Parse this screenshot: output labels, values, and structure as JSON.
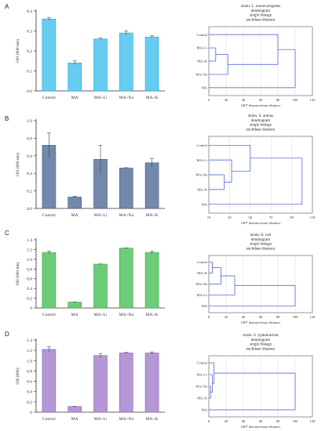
{
  "panels": [
    {
      "letter": "A",
      "bar": {
        "type": "bar",
        "categories": [
          "Control",
          "MA",
          "MA+Li",
          "MA+Na",
          "MA+K"
        ],
        "values": [
          0.36,
          0.14,
          0.26,
          0.29,
          0.27
        ],
        "errors": [
          0.008,
          0.01,
          0.004,
          0.01,
          0.006
        ],
        "ylabel": "OD (600 nm)",
        "ylim": [
          0,
          0.4
        ],
        "yticks": [
          "0.0",
          "0.1",
          "0.2",
          "0.3",
          "0.4"
        ],
        "color": "#66cdf0",
        "stroke": "#2aa7d6"
      },
      "dendro": {
        "title_lines": [
          "strain: L. monocytogenes",
          "dendrogram",
          "single linkage",
          "euclidean distance"
        ],
        "leaves": [
          "Control",
          "MA+Li",
          "MA+K",
          "MA+Na",
          "MA"
        ],
        "xlim": [
          0,
          120
        ],
        "xticks": [
          "0",
          "20",
          "40",
          "60",
          "80",
          "100",
          "120"
        ],
        "xlabel": "100* distance/max distance",
        "merges": [
          {
            "a": 1,
            "b": 2,
            "h": 8
          },
          {
            "a": "m0",
            "b": 3,
            "h": 22
          },
          {
            "a": 0,
            "b": "m1",
            "h": 80
          },
          {
            "a": "m2",
            "b": 4,
            "h": 100
          }
        ]
      }
    },
    {
      "letter": "B",
      "bar": {
        "type": "bar",
        "categories": [
          "Control",
          "MA",
          "MA+Li",
          "MA+Na",
          "MA+K"
        ],
        "values": [
          0.72,
          0.13,
          0.56,
          0.46,
          0.52
        ],
        "errors": [
          0.14,
          0.01,
          0.16,
          0.005,
          0.05
        ],
        "ylabel": "OD (600 nm)",
        "ylim": [
          0,
          1.0
        ],
        "yticks": [
          "0.0",
          "0.2",
          "0.4",
          "0.6",
          "0.8",
          "1.0"
        ],
        "color": "#7388ab",
        "stroke": "#4a5f86"
      },
      "dendro": {
        "title_lines": [
          "strain: S. aureus",
          "dendrogram",
          "single linkage",
          "euclidean distance"
        ],
        "leaves": [
          "Control",
          "MA+Li",
          "MA+Na",
          "MA+K",
          "MA"
        ],
        "xlim": [
          10,
          110
        ],
        "xticks": [
          "10",
          "30",
          "50",
          "70",
          "90",
          "110"
        ],
        "xlabel": "100* distance/max distance",
        "merges": [
          {
            "a": 2,
            "b": 3,
            "h": 25
          },
          {
            "a": 1,
            "b": "m0",
            "h": 32
          },
          {
            "a": 0,
            "b": "m1",
            "h": 50
          },
          {
            "a": "m2",
            "b": 4,
            "h": 100
          }
        ]
      }
    },
    {
      "letter": "C",
      "bar": {
        "type": "bar",
        "categories": [
          "Control",
          "MA",
          "MA+Li",
          "MA+Na",
          "MA+K"
        ],
        "values": [
          1.14,
          0.12,
          0.9,
          1.23,
          1.14
        ],
        "errors": [
          0.03,
          0.005,
          0.005,
          0.005,
          0.03
        ],
        "ylabel": "OD (600 nm)",
        "ylim": [
          0,
          1.4
        ],
        "yticks": [
          "0",
          "0.2",
          "0.4",
          "0.6",
          "0.8",
          "1.0",
          "1.2",
          "1.4"
        ],
        "color": "#6dcc78",
        "stroke": "#3ea34c"
      },
      "dendro": {
        "title_lines": [
          "strain: E. coli",
          "dendrogram",
          "single linkage",
          "euclidean distance"
        ],
        "leaves": [
          "Control",
          "MA+K",
          "MA+Na",
          "MA+Li",
          "MA"
        ],
        "xlim": [
          0,
          120
        ],
        "xticks": [
          "0",
          "20",
          "40",
          "60",
          "80",
          "100",
          "120"
        ],
        "xlabel": "100* distance/max distance",
        "merges": [
          {
            "a": 0,
            "b": 1,
            "h": 4
          },
          {
            "a": "m0",
            "b": 2,
            "h": 14
          },
          {
            "a": "m1",
            "b": 3,
            "h": 30
          },
          {
            "a": "m2",
            "b": 4,
            "h": 100
          }
        ]
      }
    },
    {
      "letter": "D",
      "bar": {
        "type": "bar",
        "categories": [
          "Control",
          "MA",
          "MA+Li",
          "MA+Na",
          "MA+K"
        ],
        "values": [
          1.22,
          0.11,
          1.1,
          1.15,
          1.15
        ],
        "errors": [
          0.05,
          0.005,
          0.04,
          0.01,
          0.02
        ],
        "ylabel": "OD (600)",
        "ylim": [
          0,
          1.4
        ],
        "yticks": [
          "0",
          "0.2",
          "0.4",
          "0.6",
          "0.8",
          "1.0",
          "1.2",
          "1.4"
        ],
        "color": "#b497d4",
        "stroke": "#8a67b2"
      },
      "dendro": {
        "title_lines": [
          "strain: S. typhimurium",
          "dendrogram",
          "single linkage",
          "euclidean distance"
        ],
        "leaves": [
          "Control",
          "MA+Li",
          "MA+Na",
          "MA+K",
          "MA"
        ],
        "xlim": [
          0,
          120
        ],
        "xticks": [
          "0",
          "20",
          "40",
          "60",
          "80",
          "100",
          "120"
        ],
        "xlabel": "100* distance/max distance",
        "merges": [
          {
            "a": 2,
            "b": 3,
            "h": 2
          },
          {
            "a": 1,
            "b": "m0",
            "h": 4
          },
          {
            "a": 0,
            "b": "m1",
            "h": 6
          },
          {
            "a": "m2",
            "b": 4,
            "h": 100
          }
        ]
      }
    }
  ]
}
